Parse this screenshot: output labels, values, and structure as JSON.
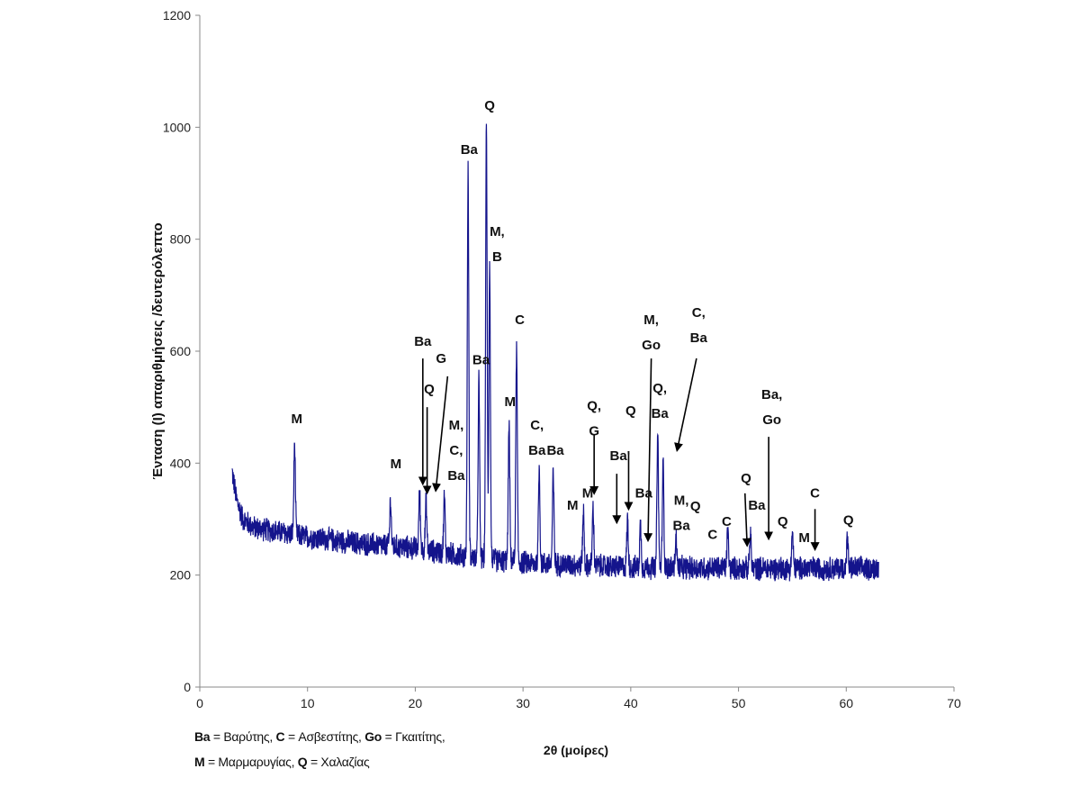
{
  "chart_data": {
    "type": "line",
    "title": "",
    "xlabel": "2θ (μοίρες)",
    "ylabel": "Ένταση (I) απαριθμήσεις /δευτερόλεπτο",
    "xlim": [
      0,
      70
    ],
    "ylim": [
      0,
      1200
    ],
    "xticks": [
      "0",
      "10",
      "20",
      "30",
      "40",
      "50",
      "60",
      "70"
    ],
    "yticks": [
      "0",
      "200",
      "400",
      "600",
      "800",
      "1000",
      "1200"
    ],
    "grid": false,
    "line_color": "#14148c",
    "x_range_measured": [
      3,
      63
    ],
    "baseline": [
      [
        3,
        385
      ],
      [
        3.4,
        335
      ],
      [
        4,
        300
      ],
      [
        5,
        285
      ],
      [
        10,
        268
      ],
      [
        15,
        256
      ],
      [
        20,
        248
      ],
      [
        25,
        232
      ],
      [
        30,
        222
      ],
      [
        35,
        218
      ],
      [
        40,
        214
      ],
      [
        50,
        212
      ],
      [
        63,
        212
      ]
    ],
    "noise_amplitude": 24,
    "peaks": [
      {
        "x": 8.8,
        "y": 435
      },
      {
        "x": 17.7,
        "y": 335
      },
      {
        "x": 20.4,
        "y": 350
      },
      {
        "x": 21.0,
        "y": 330
      },
      {
        "x": 22.7,
        "y": 340
      },
      {
        "x": 24.9,
        "y": 920
      },
      {
        "x": 25.9,
        "y": 550
      },
      {
        "x": 26.6,
        "y": 1005
      },
      {
        "x": 26.9,
        "y": 760
      },
      {
        "x": 28.7,
        "y": 470
      },
      {
        "x": 29.4,
        "y": 605
      },
      {
        "x": 31.5,
        "y": 390
      },
      {
        "x": 32.8,
        "y": 380
      },
      {
        "x": 35.6,
        "y": 315
      },
      {
        "x": 36.5,
        "y": 320
      },
      {
        "x": 39.7,
        "y": 300
      },
      {
        "x": 40.9,
        "y": 290
      },
      {
        "x": 42.5,
        "y": 455
      },
      {
        "x": 43.0,
        "y": 400
      },
      {
        "x": 44.2,
        "y": 270
      },
      {
        "x": 49.0,
        "y": 280
      },
      {
        "x": 51.1,
        "y": 275
      },
      {
        "x": 55.0,
        "y": 275
      },
      {
        "x": 60.1,
        "y": 265
      }
    ],
    "annotations": [
      {
        "lines": [
          "M"
        ],
        "x": 9.0,
        "y": 471
      },
      {
        "lines": [
          "M"
        ],
        "x": 18.2,
        "y": 391
      },
      {
        "lines": [
          "Ba"
        ],
        "x": 20.7,
        "y": 610
      },
      {
        "lines": [
          "Q"
        ],
        "x": 21.3,
        "y": 524
      },
      {
        "lines": [
          "G"
        ],
        "x": 22.4,
        "y": 579
      },
      {
        "lines": [
          "M,",
          "C,",
          "Ba"
        ],
        "x": 23.8,
        "y": 460
      },
      {
        "lines": [
          "Ba"
        ],
        "x": 25.0,
        "y": 952
      },
      {
        "lines": [
          "Q"
        ],
        "x": 26.9,
        "y": 1031
      },
      {
        "lines": [
          "M,",
          "B"
        ],
        "x": 27.6,
        "y": 806
      },
      {
        "lines": [
          "Ba"
        ],
        "x": 26.1,
        "y": 577
      },
      {
        "lines": [
          "C"
        ],
        "x": 29.7,
        "y": 648
      },
      {
        "lines": [
          "M"
        ],
        "x": 28.8,
        "y": 502
      },
      {
        "lines": [
          "C,",
          "Ba"
        ],
        "x": 31.3,
        "y": 460
      },
      {
        "lines": [
          "Ba"
        ],
        "x": 33.0,
        "y": 415
      },
      {
        "lines": [
          "Q,",
          "G"
        ],
        "x": 36.6,
        "y": 495
      },
      {
        "lines": [
          "M"
        ],
        "x": 34.6,
        "y": 317
      },
      {
        "lines": [
          "M"
        ],
        "x": 36.0,
        "y": 339
      },
      {
        "lines": [
          "Q"
        ],
        "x": 40.0,
        "y": 486
      },
      {
        "lines": [
          "Ba'"
        ],
        "x": 39.0,
        "y": 405
      },
      {
        "lines": [
          "Ba"
        ],
        "x": 41.2,
        "y": 339
      },
      {
        "lines": [
          "M,",
          "Go"
        ],
        "x": 41.9,
        "y": 648
      },
      {
        "lines": [
          "Q,",
          "Ba"
        ],
        "x": 42.7,
        "y": 526
      },
      {
        "lines": [
          "C,",
          "Ba"
        ],
        "x": 46.3,
        "y": 661
      },
      {
        "lines": [
          "M,",
          "Ba"
        ],
        "x": 44.7,
        "y": 326
      },
      {
        "lines": [
          "Q"
        ],
        "x": 46.0,
        "y": 315
      },
      {
        "lines": [
          "C"
        ],
        "x": 47.6,
        "y": 265
      },
      {
        "lines": [
          "C"
        ],
        "x": 48.9,
        "y": 288
      },
      {
        "lines": [
          "Q"
        ],
        "x": 50.7,
        "y": 365
      },
      {
        "lines": [
          "Ba"
        ],
        "x": 51.7,
        "y": 317
      },
      {
        "lines": [
          "Ba,",
          "Go"
        ],
        "x": 53.1,
        "y": 515
      },
      {
        "lines": [
          "Q"
        ],
        "x": 54.1,
        "y": 288
      },
      {
        "lines": [
          "C"
        ],
        "x": 57.1,
        "y": 339
      },
      {
        "lines": [
          "M"
        ],
        "x": 56.1,
        "y": 259
      },
      {
        "lines": [
          "Q"
        ],
        "x": 60.2,
        "y": 290
      }
    ],
    "arrows": [
      {
        "from": [
          20.7,
          587
        ],
        "to": [
          20.7,
          363
        ]
      },
      {
        "from": [
          21.1,
          500
        ],
        "to": [
          21.1,
          347
        ]
      },
      {
        "from": [
          23.0,
          555
        ],
        "to": [
          21.9,
          351
        ]
      },
      {
        "from": [
          36.6,
          452
        ],
        "to": [
          36.6,
          346
        ]
      },
      {
        "from": [
          38.7,
          381
        ],
        "to": [
          38.7,
          294
        ]
      },
      {
        "from": [
          39.8,
          418
        ],
        "to": [
          39.8,
          318
        ]
      },
      {
        "from": [
          41.9,
          587
        ],
        "to": [
          41.6,
          262
        ]
      },
      {
        "from": [
          46.1,
          587
        ],
        "to": [
          44.3,
          423
        ]
      },
      {
        "from": [
          50.6,
          346
        ],
        "to": [
          50.8,
          253
        ]
      },
      {
        "from": [
          52.8,
          447
        ],
        "to": [
          52.8,
          265
        ]
      },
      {
        "from": [
          57.1,
          318
        ],
        "to": [
          57.1,
          246
        ]
      }
    ],
    "legend": {
      "line1": [
        {
          "code": "Ba",
          "name": " = Βαρύτης, "
        },
        {
          "code": "C",
          "name": " = Ασβεστίτης, "
        },
        {
          "code": "Go",
          "name": " = Γκαιτίτης,"
        }
      ],
      "line2": [
        {
          "code": "M",
          "name": " = Μαρμαρυγίας, "
        },
        {
          "code": "Q",
          "name": " = Χαλαζίας"
        }
      ]
    }
  }
}
